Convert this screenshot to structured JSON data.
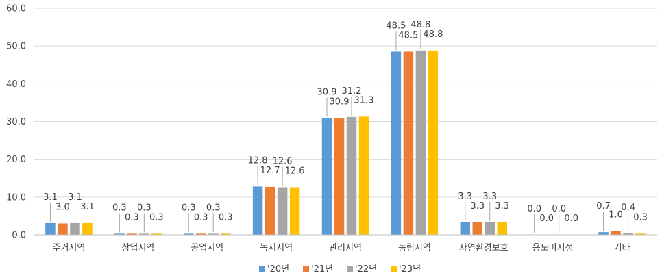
{
  "chart_data": {
    "type": "bar",
    "title": "",
    "xlabel": "",
    "ylabel": "",
    "ylim": [
      0,
      60
    ],
    "yticks": [
      "0.0",
      "10.0",
      "20.0",
      "30.0",
      "40.0",
      "50.0",
      "60.0"
    ],
    "grid": true,
    "legend_position": "bottom",
    "categories": [
      "주거지역",
      "상업지역",
      "공업지역",
      "녹지지역",
      "관리지역",
      "농림지역",
      "자연환경보호",
      "용도미지정",
      "기타"
    ],
    "series": [
      {
        "name": "'20년",
        "color": "#5B9BD5",
        "values": [
          3.1,
          0.3,
          0.3,
          12.8,
          30.9,
          48.5,
          3.3,
          0.0,
          0.7
        ]
      },
      {
        "name": "'21년",
        "color": "#ED7D31",
        "values": [
          3.0,
          0.3,
          0.3,
          12.7,
          30.9,
          48.5,
          3.3,
          0.0,
          1.0
        ]
      },
      {
        "name": "'22년",
        "color": "#A5A5A5",
        "values": [
          3.1,
          0.3,
          0.3,
          12.6,
          31.2,
          48.8,
          3.3,
          0.0,
          0.4
        ]
      },
      {
        "name": "'23년",
        "color": "#FFC000",
        "values": [
          3.1,
          0.3,
          0.3,
          12.6,
          31.3,
          48.8,
          3.3,
          0.0,
          0.3
        ]
      }
    ]
  }
}
